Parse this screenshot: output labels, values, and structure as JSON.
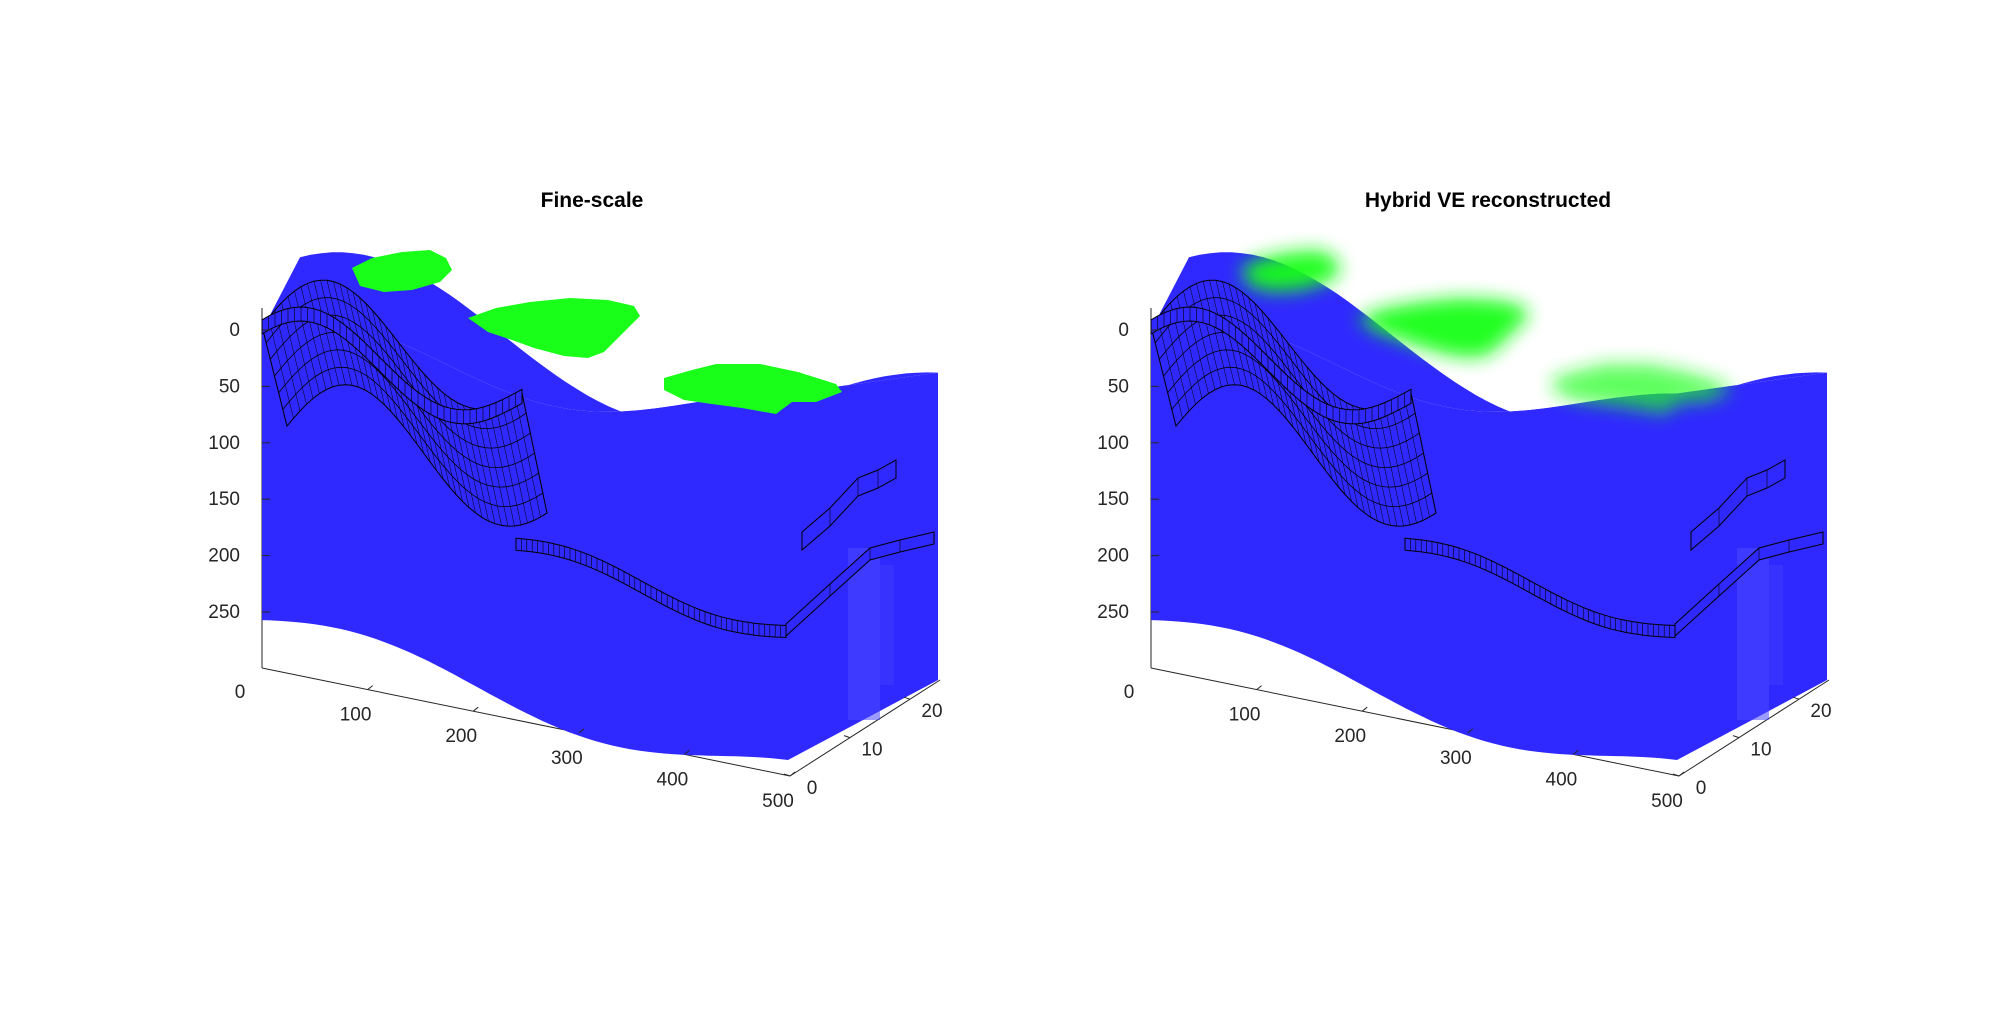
{
  "colors": {
    "brine": "#3029ff",
    "co2": "#19ff19",
    "mesh": "#000000",
    "axis": "#262626",
    "background": "#ffffff"
  },
  "chart_data": [
    {
      "type": "surface3d",
      "title": "Fine-scale",
      "x_ticks": [
        "100",
        "200",
        "300",
        "400",
        "500"
      ],
      "y_ticks": [
        "0",
        "10",
        "20"
      ],
      "z_ticks": [
        "0",
        "50",
        "100",
        "150",
        "200",
        "250"
      ],
      "x_origin_label": "0",
      "xlim": [
        0,
        500
      ],
      "ylim": [
        0,
        25
      ],
      "zlim": [
        0,
        300
      ],
      "z_reversed": true,
      "grid": false,
      "co2_plume": "sharp"
    },
    {
      "type": "surface3d",
      "title": "Hybrid VE reconstructed",
      "x_ticks": [
        "100",
        "200",
        "300",
        "400",
        "500"
      ],
      "y_ticks": [
        "0",
        "10",
        "20"
      ],
      "z_ticks": [
        "0",
        "50",
        "100",
        "150",
        "200",
        "250"
      ],
      "x_origin_label": "0",
      "xlim": [
        0,
        500
      ],
      "ylim": [
        0,
        25
      ],
      "zlim": [
        0,
        300
      ],
      "z_reversed": true,
      "grid": false,
      "co2_plume": "smeared"
    }
  ]
}
